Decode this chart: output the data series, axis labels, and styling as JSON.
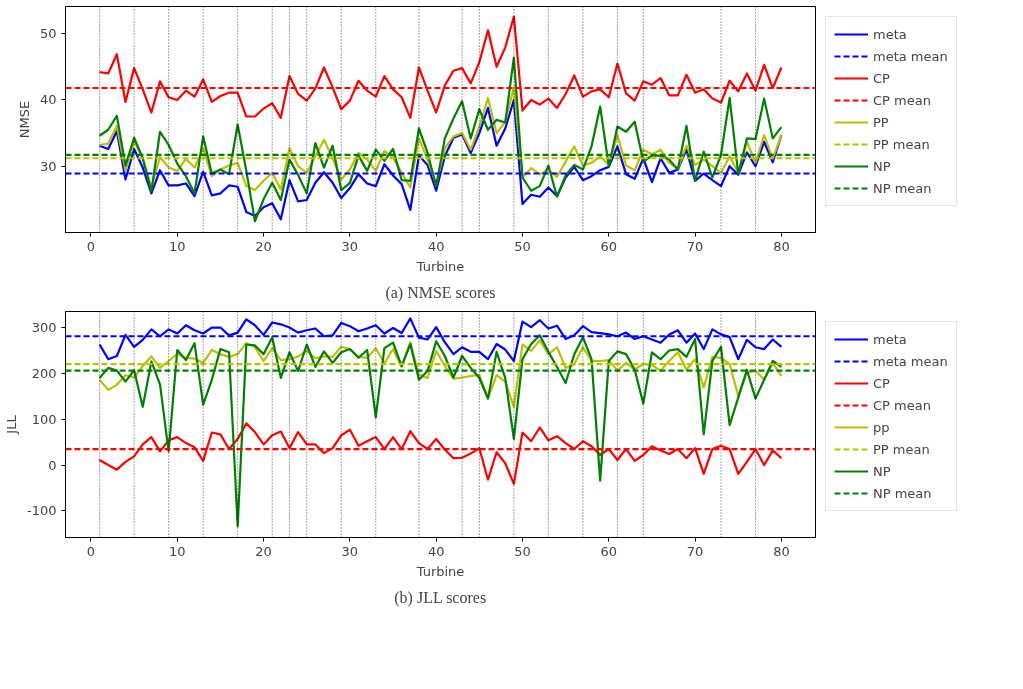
{
  "chart_data": [
    {
      "type": "line",
      "xlabel": "Turbine",
      "ylabel": "NMSE",
      "annotations": [
        "(a) NMSE scores"
      ],
      "legend": "right",
      "line_style": "solid",
      "marker": "none",
      "x": [
        1,
        2,
        3,
        4,
        5,
        6,
        7,
        8,
        9,
        10,
        11,
        12,
        13,
        14,
        15,
        16,
        17,
        18,
        19,
        20,
        21,
        22,
        23,
        24,
        25,
        26,
        27,
        28,
        29,
        30,
        31,
        32,
        33,
        34,
        35,
        36,
        37,
        38,
        39,
        40,
        41,
        42,
        43,
        44,
        45,
        46,
        47,
        48,
        49,
        50,
        51,
        52,
        53,
        54,
        55,
        56,
        57,
        58,
        59,
        60,
        61,
        62,
        63,
        64,
        65,
        66,
        67,
        68,
        69,
        70,
        71,
        72,
        73,
        74,
        75,
        76,
        77,
        78,
        79,
        80
      ],
      "xlim": [
        -2.95,
        83.95
      ],
      "xticks": [
        0,
        10,
        20,
        30,
        40,
        50,
        60,
        70,
        80
      ],
      "ylim": [
        20.0,
        54.1
      ],
      "yticks": [
        30,
        40,
        50
      ],
      "series": [
        {
          "name": "meta",
          "color": "#0000ff",
          "values": [
            33.1,
            32.6,
            35.3,
            28.0,
            32.6,
            29.8,
            25.9,
            29.4,
            27.1,
            27.1,
            27.4,
            25.5,
            29.2,
            25.6,
            25.9,
            27.1,
            26.9,
            23.1,
            22.5,
            23.8,
            24.4,
            22.0,
            27.9,
            24.7,
            24.9,
            27.5,
            29.1,
            27.5,
            25.2,
            26.7,
            28.8,
            27.4,
            27.0,
            30.3,
            28.6,
            27.3,
            23.4,
            31.6,
            30.2,
            26.3,
            31.5,
            34.3,
            34.8,
            32.0,
            35.0,
            38.8,
            33.1,
            35.7,
            40.0,
            24.3,
            25.7,
            25.4,
            26.8,
            25.5,
            28.3,
            29.9,
            27.9,
            28.5,
            29.4,
            29.9,
            33.0,
            28.8,
            28.1,
            31.2,
            27.6,
            31.2,
            29.0,
            29.5,
            32.5,
            27.8,
            28.9,
            27.9,
            27.0,
            30.0,
            28.7,
            32.1,
            30.0,
            33.7,
            30.6,
            34.7
          ]
        },
        {
          "name": "CP",
          "color": "#ff0000",
          "values": [
            44.2,
            44.0,
            46.9,
            39.7,
            44.8,
            41.6,
            38.1,
            42.8,
            40.4,
            40.0,
            41.4,
            40.5,
            43.1,
            39.7,
            40.6,
            41.1,
            41.1,
            37.5,
            37.5,
            38.7,
            39.5,
            37.3,
            43.6,
            40.9,
            39.9,
            41.7,
            44.9,
            41.9,
            38.6,
            39.9,
            42.9,
            41.4,
            40.5,
            43.6,
            41.6,
            40.4,
            37.3,
            44.9,
            41.4,
            38.1,
            42.2,
            44.4,
            44.8,
            42.5,
            45.7,
            50.5,
            45.0,
            47.9,
            52.6,
            38.4,
            40.0,
            39.3,
            40.2,
            38.8,
            40.9,
            43.7,
            40.5,
            41.3,
            41.6,
            40.4,
            45.5,
            41.0,
            39.9,
            42.8,
            42.3,
            43.3,
            40.7,
            40.7,
            43.8,
            41.1,
            41.6,
            40.2,
            39.6,
            42.9,
            41.3,
            44.0,
            41.4,
            45.3,
            41.8,
            44.9
          ]
        },
        {
          "name": "PP",
          "color": "#bfbf00",
          "values": [
            33.2,
            33.4,
            36.1,
            29.3,
            33.7,
            31.2,
            26.8,
            31.4,
            29.8,
            29.3,
            31.1,
            29.8,
            32.7,
            28.5,
            29.5,
            30.1,
            30.5,
            27.0,
            26.4,
            27.8,
            29.0,
            26.5,
            32.7,
            30.0,
            29.0,
            31.5,
            34.0,
            31.2,
            28.0,
            29.5,
            32.0,
            31.0,
            29.3,
            32.3,
            31.3,
            29.0,
            26.8,
            34.2,
            31.0,
            27.3,
            32.7,
            34.5,
            35.0,
            32.5,
            36.0,
            40.3,
            35.0,
            36.7,
            41.9,
            28.3,
            29.7,
            28.8,
            29.5,
            28.4,
            30.7,
            33.0,
            30.1,
            30.5,
            31.5,
            30.2,
            34.7,
            30.1,
            29.4,
            32.5,
            31.8,
            32.5,
            30.5,
            29.6,
            33.1,
            30.2,
            31.0,
            30.0,
            29.0,
            31.5,
            29.0,
            33.7,
            30.5,
            34.7,
            31.2,
            34.7
          ]
        },
        {
          "name": "NP",
          "color": "#008000",
          "values": [
            34.6,
            35.5,
            37.6,
            30.1,
            34.3,
            31.2,
            26.2,
            35.2,
            33.2,
            30.4,
            28.5,
            25.9,
            34.5,
            28.9,
            29.5,
            28.8,
            36.3,
            29.3,
            21.7,
            25.0,
            27.5,
            24.9,
            31.0,
            28.7,
            25.9,
            33.5,
            29.8,
            33.1,
            26.4,
            27.5,
            31.6,
            29.3,
            32.5,
            30.8,
            32.6,
            27.9,
            27.8,
            35.7,
            32.0,
            27.0,
            34.2,
            37.2,
            39.8,
            34.2,
            38.6,
            35.5,
            37.0,
            36.6,
            46.4,
            28.3,
            26.3,
            27.0,
            30.1,
            25.4,
            28.6,
            30.2,
            29.5,
            33.0,
            39.0,
            30.0,
            36.0,
            35.2,
            36.7,
            30.7,
            31.6,
            31.6,
            31.0,
            29.5,
            36.1,
            27.8,
            32.2,
            28.3,
            31.7,
            40.3,
            28.8,
            34.2,
            34.1,
            40.2,
            34.2,
            35.9
          ]
        }
      ],
      "ref_lines": [
        {
          "axis": "y",
          "value": 28.9,
          "label": "meta mean",
          "color": "#0000ff",
          "line_style": "dashed"
        },
        {
          "axis": "y",
          "value": 41.8,
          "label": "CP mean",
          "color": "#ff0000",
          "line_style": "dashed"
        },
        {
          "axis": "y",
          "value": 31.2,
          "label": "PP mean",
          "color": "#bfbf00",
          "line_style": "dashed"
        },
        {
          "axis": "y",
          "value": 31.7,
          "label": "NP mean",
          "color": "#008000",
          "line_style": "dashed"
        },
        {
          "axis": "x",
          "value": 1,
          "color": "#000000",
          "line_style": "dotted"
        },
        {
          "axis": "x",
          "value": 5,
          "color": "#000000",
          "line_style": "dotted"
        },
        {
          "axis": "x",
          "value": 9,
          "color": "#000000",
          "line_style": "dotted"
        },
        {
          "axis": "x",
          "value": 13,
          "color": "#000000",
          "line_style": "dotted"
        },
        {
          "axis": "x",
          "value": 17,
          "color": "#000000",
          "line_style": "dotted"
        },
        {
          "axis": "x",
          "value": 21,
          "color": "#000000",
          "line_style": "dotted"
        },
        {
          "axis": "x",
          "value": 23,
          "color": "#000000",
          "line_style": "dotted"
        },
        {
          "axis": "x",
          "value": 25,
          "color": "#000000",
          "line_style": "dotted"
        },
        {
          "axis": "x",
          "value": 29,
          "color": "#000000",
          "line_style": "dotted"
        },
        {
          "axis": "x",
          "value": 33,
          "color": "#000000",
          "line_style": "dotted"
        },
        {
          "axis": "x",
          "value": 38,
          "color": "#000000",
          "line_style": "dotted"
        },
        {
          "axis": "x",
          "value": 43,
          "color": "#000000",
          "line_style": "dotted"
        },
        {
          "axis": "x",
          "value": 45,
          "color": "#000000",
          "line_style": "dotted"
        },
        {
          "axis": "x",
          "value": 49,
          "color": "#000000",
          "line_style": "dotted"
        },
        {
          "axis": "x",
          "value": 53,
          "color": "#000000",
          "line_style": "dotted"
        },
        {
          "axis": "x",
          "value": 57,
          "color": "#000000",
          "line_style": "dotted"
        },
        {
          "axis": "x",
          "value": 61,
          "color": "#000000",
          "line_style": "dotted"
        },
        {
          "axis": "x",
          "value": 64,
          "color": "#000000",
          "line_style": "dotted"
        },
        {
          "axis": "x",
          "value": 73,
          "color": "#000000",
          "line_style": "dotted"
        },
        {
          "axis": "x",
          "value": 77,
          "color": "#000000",
          "line_style": "dotted"
        }
      ]
    },
    {
      "type": "line",
      "xlabel": "Turbine",
      "ylabel": "JLL",
      "annotations": [
        "(b) JLL scores"
      ],
      "legend": "right",
      "line_style": "solid",
      "marker": "none",
      "x": [
        1,
        2,
        3,
        4,
        5,
        6,
        7,
        8,
        9,
        10,
        11,
        12,
        13,
        14,
        15,
        16,
        17,
        18,
        19,
        20,
        21,
        22,
        23,
        24,
        25,
        26,
        27,
        28,
        29,
        30,
        31,
        32,
        33,
        34,
        35,
        36,
        37,
        38,
        39,
        40,
        41,
        42,
        43,
        44,
        45,
        46,
        47,
        48,
        49,
        50,
        51,
        52,
        53,
        54,
        55,
        56,
        57,
        58,
        59,
        60,
        61,
        62,
        63,
        64,
        65,
        66,
        67,
        68,
        69,
        70,
        71,
        72,
        73,
        74,
        75,
        76,
        77,
        78,
        79,
        80
      ],
      "xlim": [
        -2.95,
        83.95
      ],
      "xticks": [
        0,
        10,
        20,
        30,
        40,
        50,
        60,
        70,
        80
      ],
      "ylim": [
        -158,
        335
      ],
      "yticks": [
        -100,
        0,
        100,
        200,
        300
      ],
      "series": [
        {
          "name": "meta",
          "color": "#0000ff",
          "values": [
            263,
            231,
            238,
            284,
            258,
            273,
            296,
            281,
            296,
            287,
            305,
            294,
            287,
            300,
            300,
            283,
            289,
            318,
            305,
            284,
            311,
            307,
            300,
            289,
            294,
            298,
            281,
            283,
            310,
            303,
            292,
            298,
            305,
            287,
            299,
            288,
            320,
            278,
            274,
            301,
            268,
            242,
            257,
            247,
            247,
            231,
            264,
            252,
            227,
            313,
            301,
            316,
            298,
            304,
            275,
            283,
            303,
            290,
            288,
            285,
            281,
            289,
            275,
            281,
            274,
            267,
            285,
            294,
            267,
            287,
            253,
            296,
            285,
            279,
            231,
            273,
            257,
            253,
            274,
            258
          ]
        },
        {
          "name": "CP",
          "color": "#ff0000",
          "values": [
            11,
            0,
            -10,
            7,
            19,
            45,
            61,
            30,
            54,
            61,
            48,
            39,
            9,
            71,
            67,
            35,
            57,
            91,
            72,
            45,
            65,
            73,
            37,
            72,
            45,
            45,
            26,
            37,
            65,
            77,
            42,
            52,
            61,
            35,
            61,
            35,
            74,
            48,
            35,
            57,
            34,
            15,
            16,
            25,
            37,
            -32,
            28,
            4,
            -41,
            71,
            52,
            82,
            54,
            63,
            48,
            35,
            52,
            41,
            22,
            35,
            11,
            35,
            9,
            22,
            41,
            32,
            24,
            35,
            15,
            37,
            -19,
            35,
            42,
            35,
            -19,
            7,
            35,
            0,
            32,
            15
          ]
        },
        {
          "name": "pp",
          "color": "#bfbf00",
          "values": [
            186,
            164,
            175,
            196,
            191,
            216,
            237,
            212,
            227,
            242,
            234,
            232,
            223,
            251,
            242,
            236,
            242,
            266,
            257,
            227,
            255,
            229,
            231,
            237,
            249,
            233,
            237,
            236,
            258,
            253,
            236,
            234,
            255,
            222,
            253,
            214,
            268,
            197,
            190,
            249,
            216,
            188,
            191,
            194,
            197,
            145,
            196,
            182,
            127,
            263,
            249,
            272,
            242,
            257,
            212,
            220,
            257,
            227,
            227,
            229,
            206,
            223,
            208,
            221,
            218,
            206,
            227,
            246,
            208,
            231,
            169,
            236,
            234,
            220,
            151,
            201,
            206,
            186,
            223,
            194
          ]
        },
        {
          "name": "NP",
          "color": "#008000",
          "values": [
            190,
            212,
            206,
            182,
            207,
            127,
            226,
            176,
            30,
            251,
            229,
            266,
            132,
            186,
            253,
            246,
            -134,
            263,
            261,
            242,
            279,
            190,
            246,
            205,
            263,
            214,
            248,
            223,
            246,
            253,
            234,
            251,
            104,
            255,
            267,
            216,
            264,
            186,
            205,
            270,
            238,
            191,
            238,
            212,
            190,
            145,
            247,
            190,
            57,
            231,
            264,
            283,
            247,
            214,
            179,
            242,
            279,
            231,
            -34,
            227,
            248,
            242,
            208,
            134,
            246,
            231,
            250,
            253,
            236,
            275,
            67,
            227,
            258,
            87,
            147,
            208,
            145,
            186,
            227,
            214
          ]
        }
      ],
      "ref_lines": [
        {
          "axis": "y",
          "value": 281,
          "label": "meta mean",
          "color": "#0000ff",
          "line_style": "dashed"
        },
        {
          "axis": "y",
          "value": 35,
          "label": "CP mean",
          "color": "#ff0000",
          "line_style": "dashed"
        },
        {
          "axis": "y",
          "value": 220,
          "label": "PP mean",
          "color": "#bfbf00",
          "line_style": "dashed"
        },
        {
          "axis": "y",
          "value": 206,
          "label": "NP mean",
          "color": "#008000",
          "line_style": "dashed"
        },
        {
          "axis": "x",
          "value": 1,
          "color": "#000000",
          "line_style": "dotted"
        },
        {
          "axis": "x",
          "value": 5,
          "color": "#000000",
          "line_style": "dotted"
        },
        {
          "axis": "x",
          "value": 9,
          "color": "#000000",
          "line_style": "dotted"
        },
        {
          "axis": "x",
          "value": 13,
          "color": "#000000",
          "line_style": "dotted"
        },
        {
          "axis": "x",
          "value": 17,
          "color": "#000000",
          "line_style": "dotted"
        },
        {
          "axis": "x",
          "value": 21,
          "color": "#000000",
          "line_style": "dotted"
        },
        {
          "axis": "x",
          "value": 23,
          "color": "#000000",
          "line_style": "dotted"
        },
        {
          "axis": "x",
          "value": 25,
          "color": "#000000",
          "line_style": "dotted"
        },
        {
          "axis": "x",
          "value": 29,
          "color": "#000000",
          "line_style": "dotted"
        },
        {
          "axis": "x",
          "value": 33,
          "color": "#000000",
          "line_style": "dotted"
        },
        {
          "axis": "x",
          "value": 38,
          "color": "#000000",
          "line_style": "dotted"
        },
        {
          "axis": "x",
          "value": 43,
          "color": "#000000",
          "line_style": "dotted"
        },
        {
          "axis": "x",
          "value": 45,
          "color": "#000000",
          "line_style": "dotted"
        },
        {
          "axis": "x",
          "value": 49,
          "color": "#000000",
          "line_style": "dotted"
        },
        {
          "axis": "x",
          "value": 53,
          "color": "#000000",
          "line_style": "dotted"
        },
        {
          "axis": "x",
          "value": 57,
          "color": "#000000",
          "line_style": "dotted"
        },
        {
          "axis": "x",
          "value": 61,
          "color": "#000000",
          "line_style": "dotted"
        },
        {
          "axis": "x",
          "value": 64,
          "color": "#000000",
          "line_style": "dotted"
        },
        {
          "axis": "x",
          "value": 73,
          "color": "#000000",
          "line_style": "dotted"
        },
        {
          "axis": "x",
          "value": 77,
          "color": "#000000",
          "line_style": "dotted"
        }
      ]
    }
  ]
}
